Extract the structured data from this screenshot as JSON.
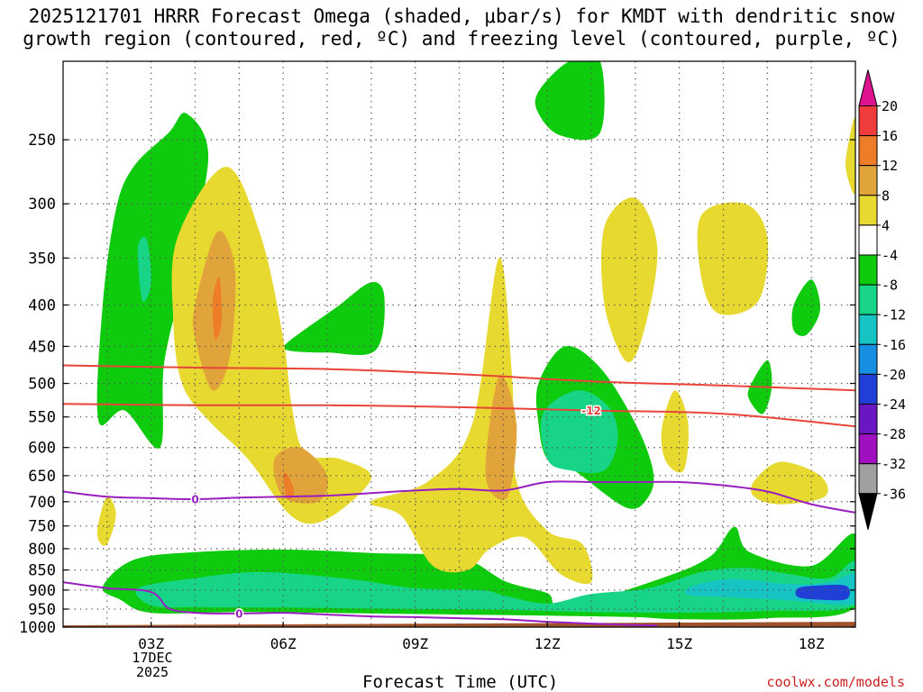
{
  "title_line1": "2025121701 HRRR Forecast Omega (shaded, μbar/s) for KMDT with dendritic snow",
  "title_line2": "growth region (contoured, red, ºC) and freezing level (contoured, purple, ºC)",
  "xlabel": "Forecast Time (UTC)",
  "credit": "coolwx.com/models",
  "date_label": [
    "17DEC",
    "2025"
  ],
  "colors": {
    "ground": "#a0522d",
    "dgz_contour": "#e8443a",
    "freezing_contour": "#9a1fc1",
    "grid": "#555555"
  },
  "chart_data": {
    "type": "heatmap",
    "y_axis": {
      "quantity": "pressure",
      "scale": "log",
      "range": [
        1000,
        200
      ],
      "ticks": [
        250,
        300,
        350,
        400,
        450,
        500,
        550,
        600,
        650,
        700,
        750,
        800,
        850,
        900,
        950,
        1000
      ]
    },
    "x_axis": {
      "range_hours": [
        1,
        19
      ],
      "ticks": [
        {
          "hour": 3,
          "label": "03Z"
        },
        {
          "hour": 6,
          "label": "06Z"
        },
        {
          "hour": 9,
          "label": "09Z"
        },
        {
          "hour": 12,
          "label": "12Z"
        },
        {
          "hour": 15,
          "label": "15Z"
        },
        {
          "hour": 18,
          "label": "18Z"
        }
      ]
    },
    "colorbar": {
      "labels": [
        "20",
        "16",
        "12",
        "8",
        "4",
        "-4",
        "-8",
        "-12",
        "-16",
        "-20",
        "-24",
        "-28",
        "-32",
        "-36"
      ],
      "bins": [
        {
          "min": 20,
          "max": null,
          "color": "#e0138f"
        },
        {
          "min": 16,
          "max": 20,
          "color": "#f03c3c"
        },
        {
          "min": 12,
          "max": 16,
          "color": "#ee7d2a"
        },
        {
          "min": 8,
          "max": 12,
          "color": "#e1a43a"
        },
        {
          "min": 4,
          "max": 8,
          "color": "#e8d930"
        },
        {
          "min": -4,
          "max": 4,
          "color": "#ffffff"
        },
        {
          "min": -8,
          "max": -4,
          "color": "#0ecb0e"
        },
        {
          "min": -12,
          "max": -8,
          "color": "#17d487"
        },
        {
          "min": -16,
          "max": -12,
          "color": "#16c4c4"
        },
        {
          "min": -20,
          "max": -16,
          "color": "#178ee0"
        },
        {
          "min": -24,
          "max": -20,
          "color": "#1f3fd6"
        },
        {
          "min": -28,
          "max": -24,
          "color": "#6a16c4"
        },
        {
          "min": -32,
          "max": -28,
          "color": "#a010c0"
        },
        {
          "min": -36,
          "max": -32,
          "color": "#a0a0a0"
        },
        {
          "min": null,
          "max": -36,
          "color": "#000000"
        }
      ]
    },
    "omega_regions": [
      {
        "value": -6,
        "pts": [
          [
            1.9,
            892
          ],
          [
            2.6,
            826
          ],
          [
            4,
            808
          ],
          [
            6,
            802
          ],
          [
            8,
            810
          ],
          [
            10,
            820
          ],
          [
            11.05,
            878
          ],
          [
            12,
            908
          ],
          [
            12.4,
            945
          ],
          [
            14.6,
            870
          ],
          [
            15.7,
            818
          ],
          [
            16.25,
            752
          ],
          [
            16.6,
            808
          ],
          [
            18,
            840
          ],
          [
            19,
            768
          ],
          [
            19,
            945
          ],
          [
            17,
            975
          ],
          [
            15,
            978
          ],
          [
            14,
            972
          ],
          [
            12,
            968
          ],
          [
            10,
            965
          ],
          [
            8,
            962
          ],
          [
            5,
            958
          ],
          [
            3,
            960
          ],
          [
            2.3,
            925
          ]
        ]
      },
      {
        "value": -10,
        "pts": [
          [
            2.7,
            895
          ],
          [
            4,
            870
          ],
          [
            5.5,
            855
          ],
          [
            7.5,
            872
          ],
          [
            9,
            895
          ],
          [
            10.5,
            900
          ],
          [
            11.05,
            915
          ],
          [
            12,
            935
          ],
          [
            13,
            910
          ],
          [
            14.3,
            895
          ],
          [
            15.5,
            855
          ],
          [
            16.5,
            845
          ],
          [
            17.5,
            860
          ],
          [
            18.4,
            870
          ],
          [
            19,
            830
          ],
          [
            19,
            940
          ],
          [
            17,
            955
          ],
          [
            15,
            960
          ],
          [
            13,
            958
          ],
          [
            11,
            952
          ],
          [
            9,
            950
          ],
          [
            6,
            946
          ],
          [
            4,
            945
          ],
          [
            3,
            940
          ]
        ]
      },
      {
        "value": -14,
        "pts": [
          [
            15.3,
            890
          ],
          [
            16.2,
            872
          ],
          [
            17.5,
            885
          ],
          [
            18.4,
            880
          ],
          [
            19,
            860
          ],
          [
            19,
            935
          ],
          [
            17.3,
            925
          ],
          [
            16,
            918
          ],
          [
            15.2,
            912
          ]
        ]
      },
      {
        "value": -22,
        "pts": [
          [
            17.7,
            895
          ],
          [
            18.2,
            888
          ],
          [
            18.8,
            890
          ],
          [
            18.8,
            923
          ],
          [
            18.2,
            925
          ],
          [
            17.7,
            918
          ]
        ]
      },
      {
        "value": -6,
        "pts": [
          [
            1.8,
            555
          ],
          [
            1.9,
            400
          ],
          [
            2.2,
            305
          ],
          [
            2.6,
            270
          ],
          [
            3.4,
            245
          ],
          [
            3.8,
            232
          ],
          [
            4.3,
            262
          ],
          [
            3.8,
            360
          ],
          [
            3.3,
            470
          ],
          [
            3.2,
            600
          ],
          [
            2.4,
            540
          ]
        ]
      },
      {
        "value": -10,
        "pts": [
          [
            2.7,
            340
          ],
          [
            2.9,
            332
          ],
          [
            3.0,
            375
          ],
          [
            2.8,
            395
          ]
        ]
      },
      {
        "value": -6,
        "pts": [
          [
            6.1,
            445
          ],
          [
            7.2,
            403
          ],
          [
            8.0,
            375
          ],
          [
            8.3,
            392
          ],
          [
            8.1,
            455
          ],
          [
            7.0,
            458
          ],
          [
            6.1,
            455
          ]
        ]
      },
      {
        "value": -6,
        "pts": [
          [
            11.8,
            218
          ],
          [
            12.5,
            200
          ],
          [
            13.2,
            200
          ],
          [
            13.2,
            245
          ],
          [
            12.3,
            247
          ],
          [
            11.8,
            232
          ]
        ]
      },
      {
        "value": -6,
        "pts": [
          [
            11.8,
            500
          ],
          [
            12.4,
            450
          ],
          [
            13.2,
            478
          ],
          [
            14.0,
            560
          ],
          [
            14.4,
            640
          ],
          [
            14.3,
            690
          ],
          [
            13.8,
            712
          ],
          [
            12.6,
            640
          ],
          [
            12.0,
            620
          ],
          [
            11.8,
            560
          ]
        ]
      },
      {
        "value": -10,
        "pts": [
          [
            11.9,
            545
          ],
          [
            12.7,
            510
          ],
          [
            13.4,
            535
          ],
          [
            13.6,
            585
          ],
          [
            13.3,
            640
          ],
          [
            12.5,
            640
          ],
          [
            12.0,
            620
          ]
        ]
      },
      {
        "value": -6,
        "pts": [
          [
            17.6,
            400
          ],
          [
            18.0,
            372
          ],
          [
            18.2,
            405
          ],
          [
            17.9,
            435
          ],
          [
            17.6,
            430
          ]
        ]
      },
      {
        "value": -6,
        "pts": [
          [
            16.6,
            505
          ],
          [
            17.0,
            468
          ],
          [
            17.1,
            505
          ],
          [
            16.9,
            545
          ],
          [
            16.6,
            525
          ]
        ]
      },
      {
        "value": 6,
        "pts": [
          [
            3.5,
            415
          ],
          [
            3.6,
            330
          ],
          [
            4.7,
            270
          ],
          [
            5.5,
            330
          ],
          [
            6.0,
            440
          ],
          [
            6.2,
            535
          ],
          [
            6.5,
            610
          ],
          [
            7.3,
            620
          ],
          [
            8.0,
            655
          ],
          [
            7.0,
            735
          ],
          [
            6.2,
            730
          ],
          [
            5.2,
            620
          ],
          [
            4.3,
            555
          ],
          [
            3.7,
            500
          ]
        ]
      },
      {
        "value": 10,
        "pts": [
          [
            4.0,
            400
          ],
          [
            4.5,
            325
          ],
          [
            4.9,
            360
          ],
          [
            4.8,
            460
          ],
          [
            4.4,
            510
          ],
          [
            4.0,
            440
          ]
        ]
      },
      {
        "value": 14,
        "pts": [
          [
            4.4,
            395
          ],
          [
            4.55,
            370
          ],
          [
            4.6,
            420
          ],
          [
            4.45,
            440
          ]
        ]
      },
      {
        "value": 10,
        "pts": [
          [
            5.8,
            620
          ],
          [
            6.4,
            600
          ],
          [
            7.0,
            650
          ],
          [
            6.8,
            700
          ],
          [
            6.0,
            690
          ]
        ]
      },
      {
        "value": 14,
        "pts": [
          [
            6.0,
            650
          ],
          [
            6.1,
            648
          ],
          [
            6.25,
            680
          ],
          [
            6.1,
            695
          ]
        ]
      },
      {
        "value": 6,
        "pts": [
          [
            8.0,
            700
          ],
          [
            9.3,
            660
          ],
          [
            10.3,
            560
          ],
          [
            10.9,
            350
          ],
          [
            11.2,
            490
          ],
          [
            11.3,
            660
          ],
          [
            12.0,
            760
          ],
          [
            12.8,
            790
          ],
          [
            13.0,
            880
          ],
          [
            12.3,
            860
          ],
          [
            11.5,
            775
          ],
          [
            10.7,
            800
          ],
          [
            10.2,
            850
          ],
          [
            9.4,
            840
          ],
          [
            8.7,
            730
          ]
        ]
      },
      {
        "value": 10,
        "pts": [
          [
            10.6,
            650
          ],
          [
            10.9,
            490
          ],
          [
            11.3,
            560
          ],
          [
            11.1,
            690
          ]
        ]
      },
      {
        "value": 6,
        "pts": [
          [
            13.3,
            320
          ],
          [
            14.0,
            295
          ],
          [
            14.5,
            340
          ],
          [
            14.2,
            430
          ],
          [
            13.8,
            470
          ],
          [
            13.3,
            400
          ]
        ]
      },
      {
        "value": 6,
        "pts": [
          [
            15.5,
            310
          ],
          [
            16.5,
            300
          ],
          [
            17.0,
            330
          ],
          [
            16.8,
            395
          ],
          [
            15.9,
            410
          ],
          [
            15.5,
            370
          ]
        ]
      },
      {
        "value": 6,
        "pts": [
          [
            14.6,
            570
          ],
          [
            14.9,
            510
          ],
          [
            15.2,
            560
          ],
          [
            15.1,
            640
          ],
          [
            14.7,
            625
          ]
        ]
      },
      {
        "value": 6,
        "pts": [
          [
            16.7,
            660
          ],
          [
            17.3,
            625
          ],
          [
            18.2,
            650
          ],
          [
            18.3,
            690
          ],
          [
            17.3,
            705
          ],
          [
            16.7,
            690
          ]
        ]
      },
      {
        "value": 6,
        "pts": [
          [
            1.8,
            745
          ],
          [
            2.0,
            690
          ],
          [
            2.2,
            725
          ],
          [
            2.0,
            790
          ],
          [
            1.8,
            780
          ]
        ]
      },
      {
        "value": 6,
        "pts": [
          [
            18.8,
            260
          ],
          [
            19.0,
            235
          ],
          [
            19.0,
            290
          ],
          [
            18.8,
            275
          ]
        ]
      }
    ],
    "dgz_lines": [
      {
        "label": "-12",
        "label_x": 13.0,
        "x": [
          1,
          4,
          7,
          10,
          13,
          16,
          19
        ],
        "p": [
          530,
          532,
          532,
          535,
          540,
          545,
          565
        ]
      },
      {
        "label": "",
        "x": [
          1,
          4,
          7,
          10,
          13,
          16,
          19
        ],
        "p": [
          475,
          478,
          480,
          487,
          497,
          503,
          510
        ]
      }
    ],
    "freezing_lines": [
      {
        "label": "0",
        "label_x": 4,
        "x": [
          1,
          2,
          3,
          4,
          5,
          6,
          7,
          8,
          9,
          10,
          11,
          12,
          13,
          14,
          15,
          16,
          17,
          18,
          19
        ],
        "p": [
          680,
          690,
          693,
          695,
          692,
          690,
          688,
          683,
          678,
          675,
          678,
          662,
          662,
          662,
          662,
          668,
          680,
          705,
          722
        ]
      },
      {
        "label": "0",
        "label_x": 5,
        "x": [
          1,
          2,
          3,
          3.4,
          4,
          5,
          6,
          7,
          8,
          9,
          10,
          11,
          12,
          13,
          14,
          14.5
        ],
        "p": [
          880,
          895,
          905,
          948,
          960,
          962,
          960,
          965,
          970,
          972,
          975,
          978,
          985,
          990,
          994,
          996
        ]
      }
    ],
    "terrain_p": [
      995,
      985
    ]
  }
}
